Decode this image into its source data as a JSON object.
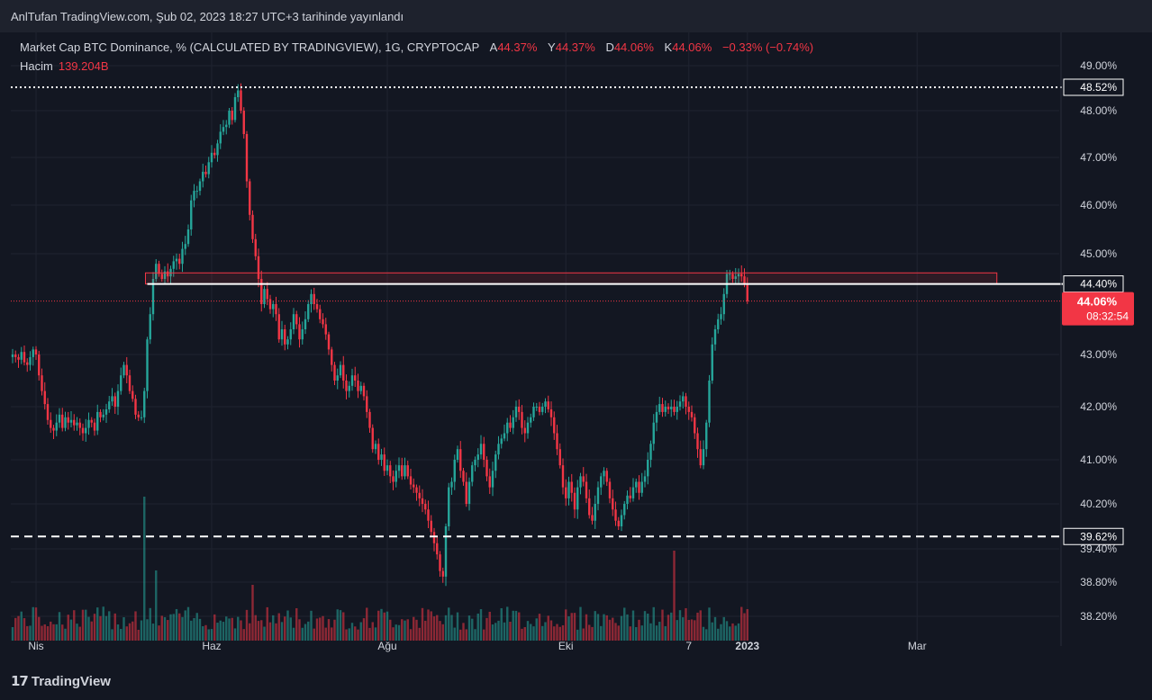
{
  "header": {
    "published_text": "AnlTufan TradingView.com, Şub 02, 2023 18:27 UTC+3 tarihinde yayınlandı"
  },
  "legend": {
    "symbol_text": "Market Cap BTC Dominance, % (CALCULATED BY TRADINGVIEW), 1G, CRYPTOCAP",
    "open_label": "A",
    "open_value": "44.37%",
    "high_label": "Y",
    "high_value": "44.37%",
    "low_label": "D",
    "low_value": "44.06%",
    "close_label": "K",
    "close_value": "44.06%",
    "change": "−0.33% (−0.74%)",
    "volume_label": "Hacim",
    "volume_value": "139.204B"
  },
  "footer": {
    "logo_text": "TradingView"
  },
  "colors": {
    "background": "#131722",
    "up": "#26a69a",
    "down": "#f23645",
    "grid": "#1f2330",
    "text": "#d1d4dc",
    "level_line": "#ffffff",
    "zone": "#f23645"
  },
  "chart_data": {
    "type": "candlestick",
    "y_unit": "%",
    "y_ticks": [
      "49.00%",
      "48.00%",
      "47.00%",
      "46.00%",
      "45.00%",
      "43.00%",
      "42.00%",
      "41.00%",
      "40.20%",
      "39.40%",
      "38.80%",
      "38.20%"
    ],
    "y_tick_values": [
      49.0,
      48.0,
      47.0,
      46.0,
      45.0,
      43.0,
      42.0,
      41.0,
      40.2,
      39.4,
      38.8,
      38.2
    ],
    "x_ticks": [
      "Nis",
      "Haz",
      "Ağu",
      "Eki",
      "7",
      "2023",
      "Mar"
    ],
    "x_tick_index": [
      8,
      68,
      128,
      189,
      231,
      251,
      309
    ],
    "bold_x_ticks": [
      "2023"
    ],
    "levels": [
      {
        "value": 48.52,
        "label": "48.52%",
        "style": "dotted"
      },
      {
        "value": 44.4,
        "label": "44.40%",
        "style": "solid"
      },
      {
        "value": 39.62,
        "label": "39.62%",
        "style": "dashed"
      }
    ],
    "zone": {
      "y_low": 44.4,
      "y_high": 44.62,
      "x_start_index": 46,
      "x_end_index": 335
    },
    "last_price": {
      "value": 44.06,
      "label": "44.06%",
      "countdown": "08:32:54"
    },
    "close_series": [
      43.0,
      42.95,
      42.9,
      43.05,
      42.85,
      42.8,
      42.95,
      43.1,
      43.0,
      42.6,
      42.3,
      42.05,
      41.75,
      41.6,
      41.55,
      41.7,
      41.85,
      41.6,
      41.8,
      41.7,
      41.75,
      41.65,
      41.7,
      41.6,
      41.5,
      41.6,
      41.75,
      41.7,
      41.55,
      41.9,
      41.8,
      41.85,
      41.95,
      42.1,
      42.2,
      42.0,
      42.3,
      42.6,
      42.8,
      42.6,
      42.3,
      42.15,
      41.85,
      41.8,
      41.8,
      42.3,
      43.3,
      43.8,
      44.5,
      44.8,
      44.6,
      44.5,
      44.65,
      44.55,
      44.7,
      44.85,
      44.9,
      44.8,
      45.1,
      45.2,
      45.5,
      46.1,
      46.3,
      46.3,
      46.5,
      46.7,
      46.65,
      46.9,
      47.1,
      47.05,
      47.3,
      47.55,
      47.65,
      47.7,
      48.0,
      47.8,
      48.3,
      48.45,
      48.0,
      47.5,
      46.5,
      45.8,
      45.3,
      44.95,
      44.5,
      44.0,
      44.3,
      44.1,
      43.9,
      44.0,
      43.8,
      43.3,
      43.5,
      43.2,
      43.3,
      43.5,
      43.8,
      43.6,
      43.3,
      43.5,
      43.7,
      44.0,
      44.2,
      44.0,
      43.9,
      43.7,
      43.6,
      43.4,
      43.1,
      42.8,
      42.5,
      42.6,
      42.8,
      42.5,
      42.3,
      42.4,
      42.6,
      42.5,
      42.3,
      42.4,
      42.2,
      41.9,
      41.6,
      41.2,
      41.3,
      41.0,
      41.1,
      40.8,
      40.9,
      40.7,
      40.6,
      40.8,
      40.9,
      40.7,
      40.9,
      40.7,
      40.55,
      40.5,
      40.4,
      40.3,
      40.2,
      40.1,
      39.9,
      39.7,
      39.5,
      39.3,
      39.0,
      38.9,
      39.8,
      40.5,
      40.6,
      41.0,
      41.2,
      40.8,
      40.6,
      40.2,
      40.6,
      40.9,
      41.0,
      41.1,
      41.3,
      41.0,
      40.7,
      40.5,
      40.8,
      41.1,
      41.3,
      41.4,
      41.5,
      41.7,
      41.6,
      41.8,
      42.0,
      41.9,
      41.6,
      41.5,
      41.7,
      41.8,
      42.0,
      42.0,
      41.9,
      42.0,
      42.1,
      41.95,
      41.8,
      41.5,
      41.2,
      40.9,
      40.5,
      40.3,
      40.6,
      40.4,
      40.1,
      40.5,
      40.7,
      40.6,
      40.3,
      40.0,
      39.9,
      40.2,
      40.5,
      40.7,
      40.8,
      40.6,
      40.3,
      40.1,
      39.9,
      39.8,
      40.0,
      40.2,
      40.35,
      40.3,
      40.5,
      40.6,
      40.4,
      40.6,
      40.7,
      41.0,
      41.3,
      41.7,
      41.9,
      42.05,
      41.9,
      42.0,
      41.95,
      42.0,
      41.9,
      42.0,
      42.1,
      42.2,
      42.0,
      41.9,
      41.8,
      41.5,
      41.2,
      40.9,
      41.2,
      41.7,
      42.5,
      43.2,
      43.5,
      43.7,
      43.8,
      44.2,
      44.6,
      44.6,
      44.5,
      44.55,
      44.6,
      44.55,
      44.4,
      44.06
    ]
  }
}
